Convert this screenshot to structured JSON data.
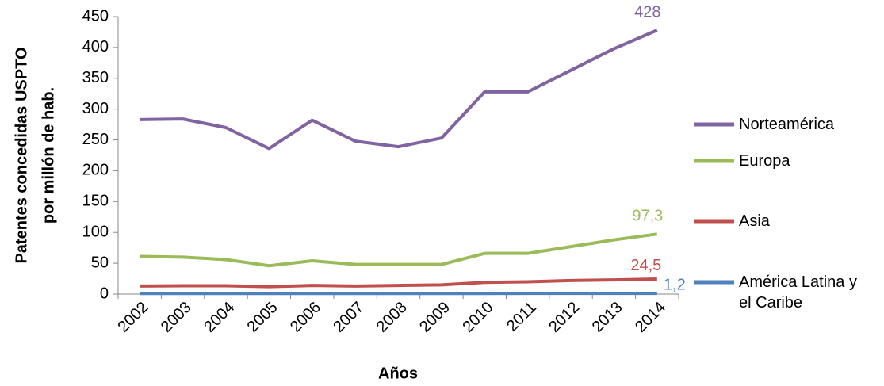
{
  "chart_data": {
    "type": "line",
    "ylabel": [
      "Patentes concedidas USPTO",
      "por millón de hab."
    ],
    "xlabel": "Años",
    "categories": [
      "2002",
      "2003",
      "2004",
      "2005",
      "2006",
      "2007",
      "2008",
      "2009",
      "2010",
      "2011",
      "2012",
      "2013",
      "2014"
    ],
    "series": [
      {
        "name": "Norteamérica",
        "color": "#8064a2",
        "values": [
          283,
          284,
          270,
          236,
          282,
          248,
          239,
          253,
          328,
          328,
          363,
          398,
          428
        ],
        "value_labels": [
          null,
          null,
          null,
          null,
          null,
          null,
          null,
          null,
          null,
          null,
          null,
          null,
          "428"
        ]
      },
      {
        "name": "Europa",
        "color": "#9bbb59",
        "values": [
          61,
          60,
          56,
          46,
          54,
          48,
          48,
          48,
          66,
          66,
          77,
          88,
          97.3
        ],
        "value_labels": [
          null,
          null,
          null,
          null,
          null,
          null,
          null,
          null,
          null,
          null,
          null,
          null,
          "97,3"
        ]
      },
      {
        "name": "Asia",
        "color": "#c0504d",
        "values": [
          13,
          13.5,
          13.5,
          12,
          14,
          13,
          14,
          15,
          19,
          20,
          22,
          23,
          24.5
        ],
        "value_labels": [
          null,
          null,
          null,
          null,
          null,
          null,
          null,
          null,
          null,
          null,
          null,
          null,
          "24,5"
        ]
      },
      {
        "name": "América Latina y el Caribe",
        "color": "#4f81bd",
        "values": [
          0.9,
          1,
          1,
          1,
          1,
          1,
          1,
          1,
          1,
          1.1,
          1.1,
          1.2,
          1.2
        ],
        "value_labels": [
          null,
          null,
          null,
          null,
          null,
          null,
          null,
          null,
          null,
          null,
          null,
          null,
          "1,2"
        ]
      }
    ],
    "ylim": [
      0,
      450
    ],
    "yticks": [
      0,
      50,
      100,
      150,
      200,
      250,
      300,
      350,
      400,
      450
    ],
    "grid": false
  }
}
